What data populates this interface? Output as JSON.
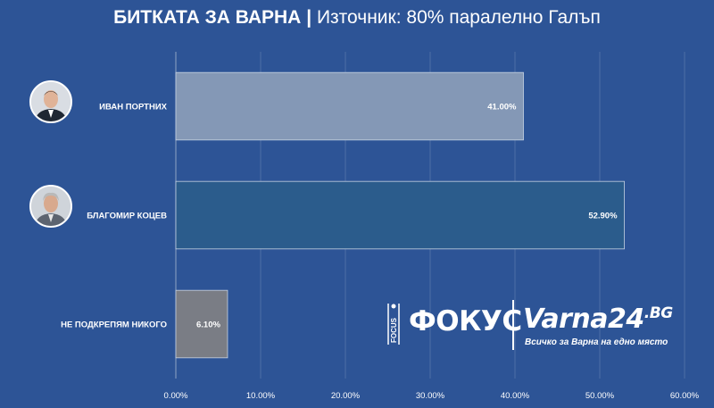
{
  "chart_data": {
    "type": "bar",
    "orientation": "horizontal",
    "title": "БИТКАТА ЗА ВАРНА",
    "title_separator": "|",
    "subtitle": "Източник: 80% паралелно Галъп",
    "categories": [
      "ИВАН ПОРТНИХ",
      "БЛАГОМИР КОЦЕВ",
      "НЕ ПОДКРЕПЯМ НИКОГО"
    ],
    "values": [
      41.0,
      52.9,
      6.1
    ],
    "value_labels": [
      "41.00%",
      "52.90%",
      "6.10%"
    ],
    "xticks": [
      "0.00%",
      "10.00%",
      "20.00%",
      "30.00%",
      "40.00%",
      "50.00%",
      "60.00%"
    ],
    "xlim": [
      0,
      60
    ],
    "grid": true,
    "bar_colors": [
      "#8498b6",
      "#2b5c8c",
      "#7a7d85"
    ],
    "background": "#2d5496"
  },
  "logos": {
    "focus_vertical": "FOCUS",
    "focus": "ФОКУС",
    "varna": "Varna24",
    "varna_suffix": ".BG",
    "varna_tagline": "Всичко за Варна на едно място"
  }
}
